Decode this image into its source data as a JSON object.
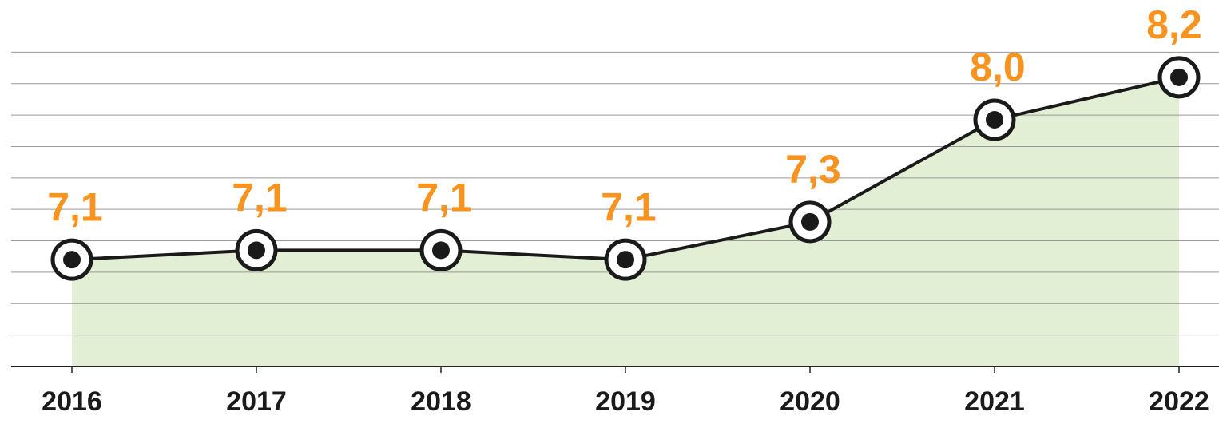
{
  "chart_data": {
    "type": "line",
    "categories": [
      "2016",
      "2017",
      "2018",
      "2019",
      "2020",
      "2021",
      "2022"
    ],
    "values": [
      7.08,
      7.14,
      7.14,
      7.08,
      7.32,
      7.97,
      8.24
    ],
    "value_labels": [
      "7,1",
      "7,1",
      "7,1",
      "7,1",
      "7,3",
      "8,0",
      "8,2"
    ],
    "color": "#1a1a1a",
    "area_color": "#e2efd5",
    "label_color": "#f7931e",
    "ylim": [
      6.4,
      8.6
    ],
    "yticks": [
      6.4,
      6.6,
      6.8,
      7.0,
      7.2,
      7.4,
      7.6,
      7.8,
      8.0,
      8.2,
      8.4
    ],
    "grid": true
  }
}
